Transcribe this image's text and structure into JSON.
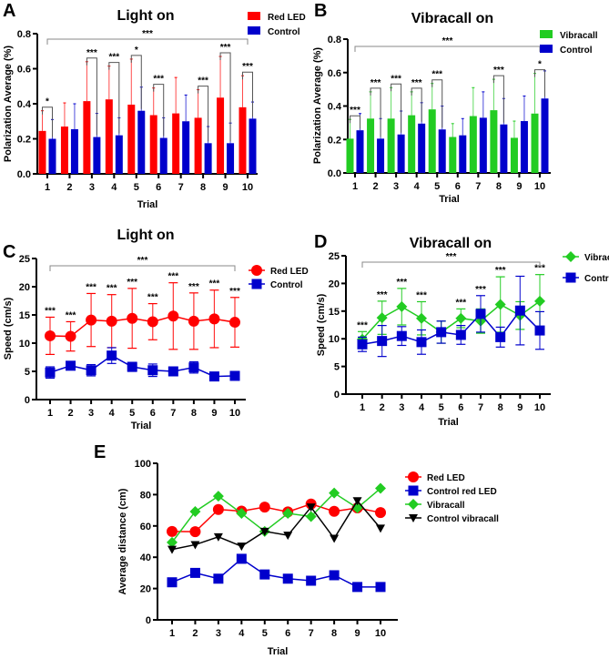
{
  "chart_data": [
    {
      "panel": "A",
      "type": "bar",
      "title": "Light on",
      "xlabel": "Trial",
      "ylabel": "Polarization Average (%)",
      "ylim": [
        0,
        0.8
      ],
      "yticks": [
        "0.0",
        "0.2",
        "0.4",
        "0.6",
        "0.8"
      ],
      "categories": [
        "1",
        "2",
        "3",
        "4",
        "5",
        "6",
        "7",
        "8",
        "9",
        "10"
      ],
      "legend_position": "top-right",
      "series": [
        {
          "name": "Red LED",
          "color": "#ff0000",
          "values": [
            0.245,
            0.27,
            0.415,
            0.425,
            0.395,
            0.335,
            0.345,
            0.32,
            0.435,
            0.38
          ],
          "error_top": [
            0.36,
            0.405,
            0.64,
            0.615,
            0.655,
            0.49,
            0.55,
            0.48,
            0.67,
            0.56
          ]
        },
        {
          "name": "Control",
          "color": "#0000cc",
          "values": [
            0.2,
            0.255,
            0.21,
            0.22,
            0.36,
            0.205,
            0.3,
            0.175,
            0.175,
            0.315
          ],
          "error_top": [
            0.31,
            0.4,
            0.345,
            0.32,
            0.495,
            0.32,
            0.45,
            0.27,
            0.29,
            0.41
          ]
        }
      ],
      "significance": [
        "*",
        "",
        "***",
        "***",
        "*",
        "***",
        "",
        "***",
        "***",
        "***"
      ],
      "overall_significance": "***"
    },
    {
      "panel": "B",
      "type": "bar",
      "title": "Vibracall on",
      "xlabel": "Trial",
      "ylabel": "Polarization Average (%)",
      "ylim": [
        0,
        0.8
      ],
      "yticks": [
        "0.0",
        "0.2",
        "0.4",
        "0.6",
        "0.8"
      ],
      "categories": [
        "1",
        "2",
        "3",
        "4",
        "5",
        "6",
        "7",
        "8",
        "9",
        "10"
      ],
      "legend_position": "top-right",
      "series": [
        {
          "name": "Vibracall",
          "color": "#22cc22",
          "values": [
            0.205,
            0.325,
            0.325,
            0.345,
            0.38,
            0.215,
            0.34,
            0.375,
            0.21,
            0.355
          ],
          "error_top": [
            0.32,
            0.485,
            0.51,
            0.485,
            0.535,
            0.295,
            0.51,
            0.56,
            0.31,
            0.595
          ]
        },
        {
          "name": "Control",
          "color": "#0000cc",
          "values": [
            0.255,
            0.205,
            0.23,
            0.295,
            0.26,
            0.225,
            0.33,
            0.29,
            0.31,
            0.445
          ],
          "error_top": [
            0.355,
            0.325,
            0.37,
            0.42,
            0.4,
            0.325,
            0.485,
            0.445,
            0.46,
            0.61
          ]
        }
      ],
      "significance": [
        "***",
        "***",
        "***",
        "***",
        "***",
        "",
        "",
        "***",
        "",
        "*"
      ],
      "overall_significance": "***"
    },
    {
      "panel": "C",
      "type": "line",
      "title": "Light on",
      "xlabel": "Trial",
      "ylabel": "Speed (cm/s)",
      "ylim": [
        0,
        25
      ],
      "yticks": [
        "0",
        "5",
        "10",
        "15",
        "20",
        "25"
      ],
      "x": [
        "1",
        "2",
        "3",
        "4",
        "5",
        "6",
        "7",
        "8",
        "9",
        "10"
      ],
      "legend_position": "top-right",
      "series": [
        {
          "name": "Red LED",
          "color": "#ff0000",
          "marker": "circle",
          "values": [
            11.3,
            11.2,
            14.1,
            13.9,
            14.4,
            13.8,
            14.8,
            13.9,
            14.3,
            13.7
          ],
          "error": [
            3.3,
            2.6,
            4.7,
            4.7,
            5.3,
            3.2,
            5.9,
            5.0,
            5.1,
            4.4
          ]
        },
        {
          "name": "Control",
          "color": "#0000cc",
          "marker": "square",
          "values": [
            4.8,
            6.0,
            5.2,
            7.8,
            5.8,
            5.2,
            5.0,
            5.7,
            4.1,
            4.2
          ],
          "error": [
            1.0,
            0.5,
            1.0,
            1.4,
            0.8,
            1.1,
            0.5,
            1.0,
            0.5,
            0.3
          ]
        }
      ],
      "significance": [
        "***",
        "***",
        "***",
        "***",
        "***",
        "***",
        "***",
        "***",
        "***",
        "***"
      ],
      "overall_significance": "***"
    },
    {
      "panel": "D",
      "type": "line",
      "title": "Vibracall on",
      "xlabel": "Trial",
      "ylabel": "Speed (cm/s)",
      "ylim": [
        0,
        25
      ],
      "yticks": [
        "0",
        "5",
        "10",
        "15",
        "20",
        "25"
      ],
      "x": [
        "1",
        "2",
        "3",
        "4",
        "5",
        "6",
        "7",
        "8",
        "9",
        "10"
      ],
      "legend_position": "top-right",
      "series": [
        {
          "name": "Vibracall",
          "color": "#22cc22",
          "marker": "diamond",
          "values": [
            9.9,
            13.8,
            15.8,
            13.7,
            11.2,
            13.7,
            13.2,
            16.2,
            14.2,
            16.8
          ],
          "error": [
            1.4,
            3.0,
            3.3,
            3.0,
            2.0,
            1.7,
            2.2,
            5.0,
            2.5,
            4.8
          ]
        },
        {
          "name": "Control",
          "color": "#0000cc",
          "marker": "square",
          "values": [
            9.0,
            9.6,
            10.5,
            9.4,
            11.2,
            10.7,
            14.5,
            10.3,
            15.1,
            11.5
          ],
          "error": [
            1.3,
            2.8,
            1.7,
            2.2,
            2.0,
            1.7,
            3.3,
            1.8,
            6.2,
            3.4
          ]
        }
      ],
      "significance": [
        "***",
        "***",
        "***",
        "***",
        "",
        "***",
        "***",
        "***",
        "",
        "***"
      ],
      "overall_significance": "***"
    },
    {
      "panel": "E",
      "type": "line",
      "title": "",
      "xlabel": "Trial",
      "ylabel": "Average distance (cm)",
      "ylim": [
        0,
        100
      ],
      "yticks": [
        "0",
        "20",
        "40",
        "60",
        "80",
        "100"
      ],
      "x": [
        "1",
        "2",
        "3",
        "4",
        "5",
        "6",
        "7",
        "8",
        "9",
        "10"
      ],
      "legend_position": "right",
      "series": [
        {
          "name": "Red LED",
          "color": "#ff0000",
          "marker": "circle",
          "values": [
            56.5,
            56.3,
            70.5,
            69.5,
            72,
            69,
            74,
            69.3,
            71.5,
            68.5
          ]
        },
        {
          "name": "Control red LED",
          "color": "#0000cc",
          "marker": "square",
          "values": [
            24,
            30,
            26.3,
            39,
            29,
            26.3,
            25,
            28.5,
            21,
            21
          ]
        },
        {
          "name": "Vibracall",
          "color": "#22cc22",
          "marker": "diamond",
          "values": [
            49.5,
            69.2,
            79,
            68,
            56.5,
            68,
            66,
            81,
            71.5,
            84
          ]
        },
        {
          "name": "Control vibracall",
          "color": "#000000",
          "marker": "triangle-down",
          "values": [
            45,
            48,
            53,
            47,
            56.5,
            54,
            72,
            52,
            76,
            58.5
          ]
        }
      ]
    }
  ]
}
